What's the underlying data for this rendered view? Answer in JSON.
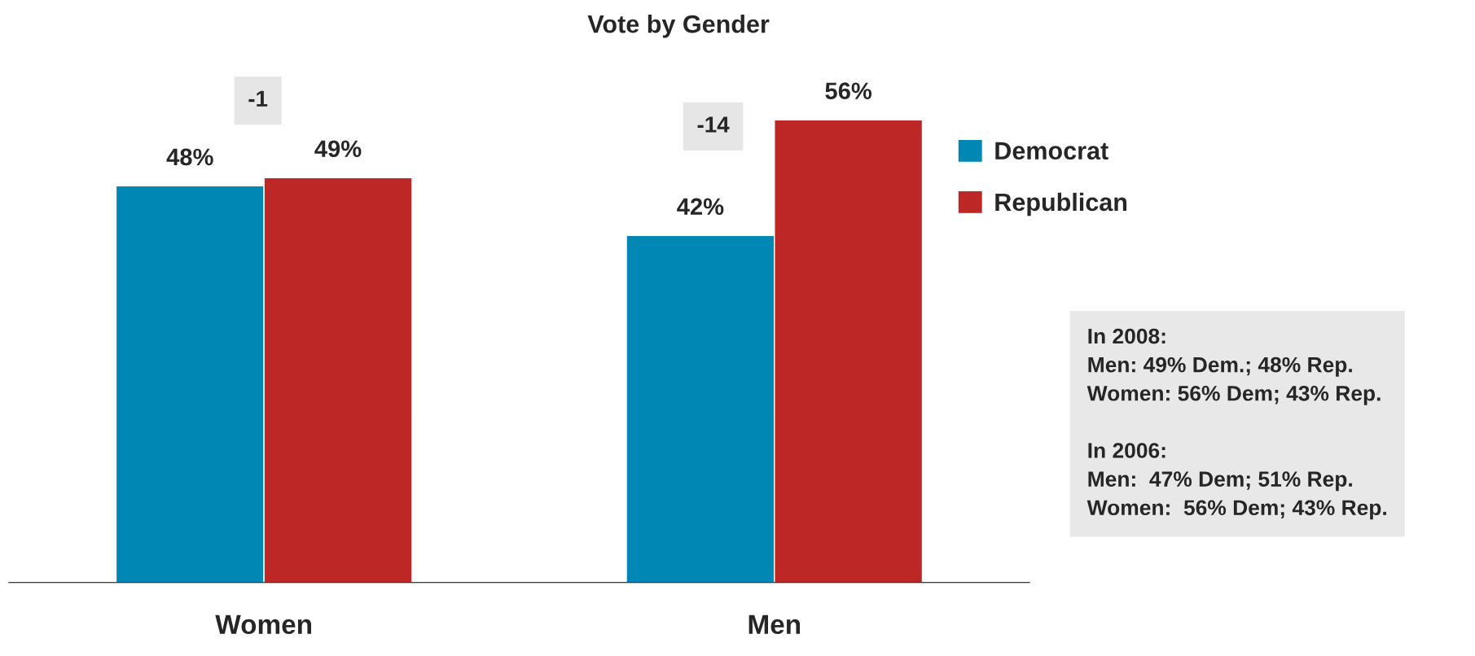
{
  "chart_data": {
    "type": "bar",
    "title": "Vote by Gender",
    "categories": [
      "Women",
      "Men"
    ],
    "series": [
      {
        "name": "Democrat",
        "color": "#0087b4",
        "values": [
          48,
          42
        ],
        "value_labels": [
          "48%",
          "42%"
        ]
      },
      {
        "name": "Republican",
        "color": "#bd2827",
        "values": [
          49,
          56
        ],
        "value_labels": [
          "49%",
          "56%"
        ]
      }
    ],
    "legend": "right",
    "annotations": [
      "-1",
      "-14",
      "In 2008:\nMen: 49% Dem.; 48% Rep.\nWomen: 56% Dem; 43% Rep.\n\nIn 2006:\nMen:  47% Dem; 51% Rep.\nWomen:  56% Dem; 43% Rep."
    ]
  }
}
